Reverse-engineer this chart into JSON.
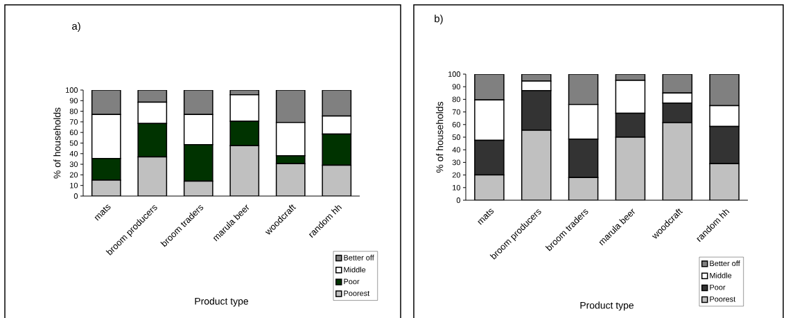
{
  "chart_data": [
    {
      "type": "bar",
      "stacked": true,
      "title": "a)",
      "xlabel": "Product type",
      "ylabel": "% of households",
      "legend": "bottom right",
      "grid": false,
      "categories": [
        "mats",
        "broom producers",
        "broom traders",
        "marula beer",
        "woodcraft",
        "random hh"
      ],
      "ylim": [
        0,
        100
      ],
      "yticks": [
        0,
        10,
        20,
        30,
        40,
        50,
        60,
        70,
        80,
        90,
        100
      ],
      "series": [
        {
          "name": "Poorest",
          "color": "#c0c0c0",
          "values": [
            15,
            37,
            14,
            47.5,
            30.5,
            29
          ]
        },
        {
          "name": "Poor",
          "color": "#003300",
          "values": [
            20.5,
            31.5,
            34.5,
            23,
            7.5,
            29.5
          ]
        },
        {
          "name": "Middle",
          "color": "#ffffff",
          "values": [
            41.5,
            20,
            28.5,
            25,
            31.5,
            17
          ]
        },
        {
          "name": "Better off",
          "color": "#808080",
          "values": [
            23,
            11.5,
            23,
            4.5,
            30.5,
            24.5
          ]
        }
      ]
    },
    {
      "type": "bar",
      "stacked": true,
      "title": "b)",
      "xlabel": "Product type",
      "ylabel": "% of households",
      "legend": "bottom right",
      "grid": false,
      "categories": [
        "mats",
        "broom producers",
        "broom traders",
        "marula beer",
        "woodcraft",
        "random hh"
      ],
      "ylim": [
        0,
        100
      ],
      "yticks": [
        0,
        10,
        20,
        30,
        40,
        50,
        60,
        70,
        80,
        90,
        100
      ],
      "series": [
        {
          "name": "Poorest",
          "color": "#c0c0c0",
          "values": [
            20,
            55.5,
            18,
            50,
            61.5,
            29
          ]
        },
        {
          "name": "Poor",
          "color": "#333333",
          "values": [
            27.5,
            31.5,
            30.5,
            19,
            15.5,
            29.5
          ]
        },
        {
          "name": "Middle",
          "color": "#ffffff",
          "values": [
            32,
            7.5,
            27.5,
            26,
            8,
            16.5
          ]
        },
        {
          "name": "Better off",
          "color": "#808080",
          "values": [
            20.5,
            5.5,
            24,
            5,
            15,
            25
          ]
        }
      ]
    }
  ]
}
